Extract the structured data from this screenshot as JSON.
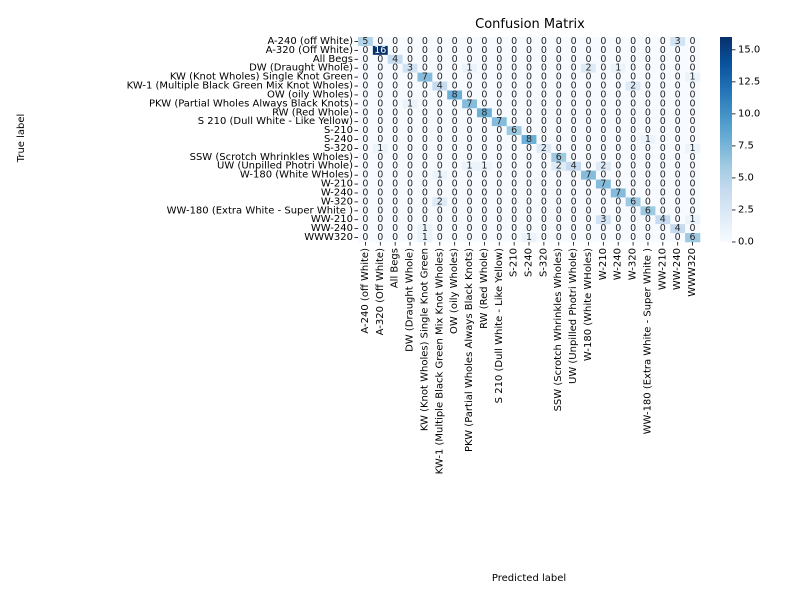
{
  "chart_data": {
    "type": "heatmap",
    "title": "Confusion Matrix",
    "xlabel": "Predicted label",
    "ylabel": "True label",
    "labels": [
      "A-240 (off White)",
      "A-320 (Off White)",
      "All Begs",
      "DW (Draught Whole)",
      "KW (Knot Wholes) Single Knot Green",
      "KW-1 (Multiple Black Green Mix Knot Wholes)",
      "OW (oily Wholes)",
      "PKW (Partial Wholes Always Black Knots)",
      "RW (Red Whole)",
      "S 210 (Dull White - Like Yellow)",
      "S-210",
      "S-240",
      "S-320",
      "SSW (Scrotch Whrinkles Wholes)",
      "UW (Unpilled Photri Whole)",
      "W-180 (White WHoles)",
      "W-210",
      "W-240",
      "W-320",
      "WW-180 (Extra White - Super White )",
      "WW-210",
      "WW-240",
      "WWW320"
    ],
    "matrix": [
      [
        5,
        0,
        0,
        0,
        0,
        0,
        0,
        0,
        0,
        0,
        0,
        0,
        0,
        0,
        0,
        0,
        0,
        0,
        0,
        0,
        0,
        3,
        0
      ],
      [
        0,
        16,
        0,
        0,
        0,
        0,
        0,
        0,
        0,
        0,
        0,
        0,
        0,
        0,
        0,
        0,
        0,
        0,
        0,
        0,
        0,
        0,
        0
      ],
      [
        0,
        0,
        4,
        0,
        0,
        0,
        0,
        0,
        0,
        0,
        0,
        0,
        0,
        0,
        0,
        0,
        0,
        0,
        0,
        0,
        0,
        0,
        0
      ],
      [
        0,
        0,
        0,
        3,
        0,
        0,
        0,
        1,
        0,
        0,
        0,
        0,
        0,
        0,
        0,
        2,
        0,
        1,
        0,
        0,
        0,
        0,
        0
      ],
      [
        0,
        0,
        0,
        0,
        7,
        0,
        0,
        0,
        0,
        0,
        0,
        0,
        0,
        0,
        0,
        0,
        0,
        0,
        0,
        0,
        0,
        0,
        1
      ],
      [
        0,
        0,
        0,
        0,
        0,
        4,
        0,
        0,
        0,
        0,
        0,
        0,
        0,
        0,
        0,
        0,
        0,
        0,
        2,
        0,
        0,
        0,
        0
      ],
      [
        0,
        0,
        0,
        0,
        0,
        0,
        8,
        0,
        0,
        0,
        0,
        0,
        0,
        0,
        0,
        0,
        0,
        0,
        0,
        0,
        0,
        0,
        0
      ],
      [
        0,
        0,
        0,
        1,
        0,
        0,
        0,
        7,
        0,
        0,
        0,
        0,
        0,
        0,
        0,
        0,
        0,
        0,
        0,
        0,
        0,
        0,
        0
      ],
      [
        0,
        0,
        0,
        0,
        0,
        0,
        0,
        0,
        8,
        0,
        0,
        0,
        0,
        0,
        0,
        0,
        0,
        0,
        0,
        0,
        0,
        0,
        0
      ],
      [
        0,
        0,
        0,
        0,
        0,
        0,
        0,
        0,
        0,
        7,
        0,
        0,
        0,
        0,
        0,
        0,
        0,
        0,
        0,
        0,
        0,
        0,
        0
      ],
      [
        0,
        0,
        0,
        0,
        0,
        0,
        0,
        0,
        0,
        0,
        6,
        0,
        0,
        0,
        0,
        0,
        0,
        0,
        0,
        0,
        0,
        0,
        0
      ],
      [
        0,
        0,
        0,
        0,
        0,
        0,
        0,
        0,
        0,
        0,
        0,
        8,
        0,
        0,
        0,
        0,
        0,
        0,
        0,
        1,
        0,
        0,
        0
      ],
      [
        0,
        1,
        0,
        0,
        0,
        0,
        0,
        0,
        0,
        0,
        0,
        0,
        2,
        0,
        0,
        0,
        0,
        0,
        0,
        0,
        0,
        0,
        1
      ],
      [
        0,
        0,
        0,
        0,
        0,
        0,
        0,
        0,
        0,
        0,
        0,
        0,
        0,
        6,
        0,
        0,
        0,
        0,
        0,
        0,
        0,
        0,
        0
      ],
      [
        0,
        0,
        0,
        0,
        0,
        0,
        0,
        1,
        1,
        0,
        0,
        0,
        0,
        2,
        4,
        0,
        2,
        0,
        0,
        0,
        0,
        0,
        0
      ],
      [
        0,
        0,
        0,
        0,
        0,
        1,
        0,
        0,
        0,
        0,
        0,
        0,
        0,
        0,
        0,
        7,
        0,
        0,
        0,
        0,
        0,
        0,
        0
      ],
      [
        0,
        0,
        0,
        0,
        0,
        0,
        0,
        0,
        0,
        0,
        0,
        0,
        0,
        0,
        0,
        0,
        7,
        0,
        0,
        0,
        0,
        0,
        0
      ],
      [
        0,
        0,
        0,
        0,
        0,
        0,
        0,
        0,
        0,
        0,
        0,
        0,
        0,
        0,
        0,
        0,
        0,
        7,
        0,
        0,
        0,
        0,
        0
      ],
      [
        0,
        0,
        0,
        0,
        0,
        2,
        0,
        0,
        0,
        0,
        0,
        0,
        0,
        0,
        0,
        0,
        0,
        0,
        6,
        0,
        0,
        0,
        0
      ],
      [
        0,
        0,
        0,
        0,
        0,
        0,
        0,
        0,
        0,
        0,
        0,
        0,
        0,
        0,
        0,
        0,
        0,
        0,
        0,
        6,
        0,
        0,
        0
      ],
      [
        0,
        0,
        0,
        0,
        0,
        0,
        0,
        0,
        0,
        0,
        0,
        0,
        0,
        0,
        0,
        0,
        3,
        0,
        0,
        0,
        4,
        0,
        1
      ],
      [
        0,
        0,
        0,
        0,
        1,
        0,
        0,
        0,
        0,
        0,
        0,
        0,
        0,
        0,
        0,
        0,
        0,
        0,
        0,
        0,
        0,
        4,
        0
      ],
      [
        0,
        0,
        0,
        0,
        1,
        0,
        0,
        0,
        0,
        0,
        0,
        1,
        0,
        0,
        0,
        0,
        0,
        0,
        0,
        0,
        0,
        0,
        6
      ]
    ],
    "colorbar": {
      "min": 0,
      "max": 16,
      "ticks": [
        "0.0",
        "2.5",
        "5.0",
        "7.5",
        "10.0",
        "12.5",
        "15.0"
      ],
      "colormap": "Blues",
      "colors": [
        "#f7fbff",
        "#deebf7",
        "#c6dbef",
        "#9ecae1",
        "#6baed6",
        "#4292c6",
        "#2171b5",
        "#08519c",
        "#08306b"
      ]
    }
  }
}
